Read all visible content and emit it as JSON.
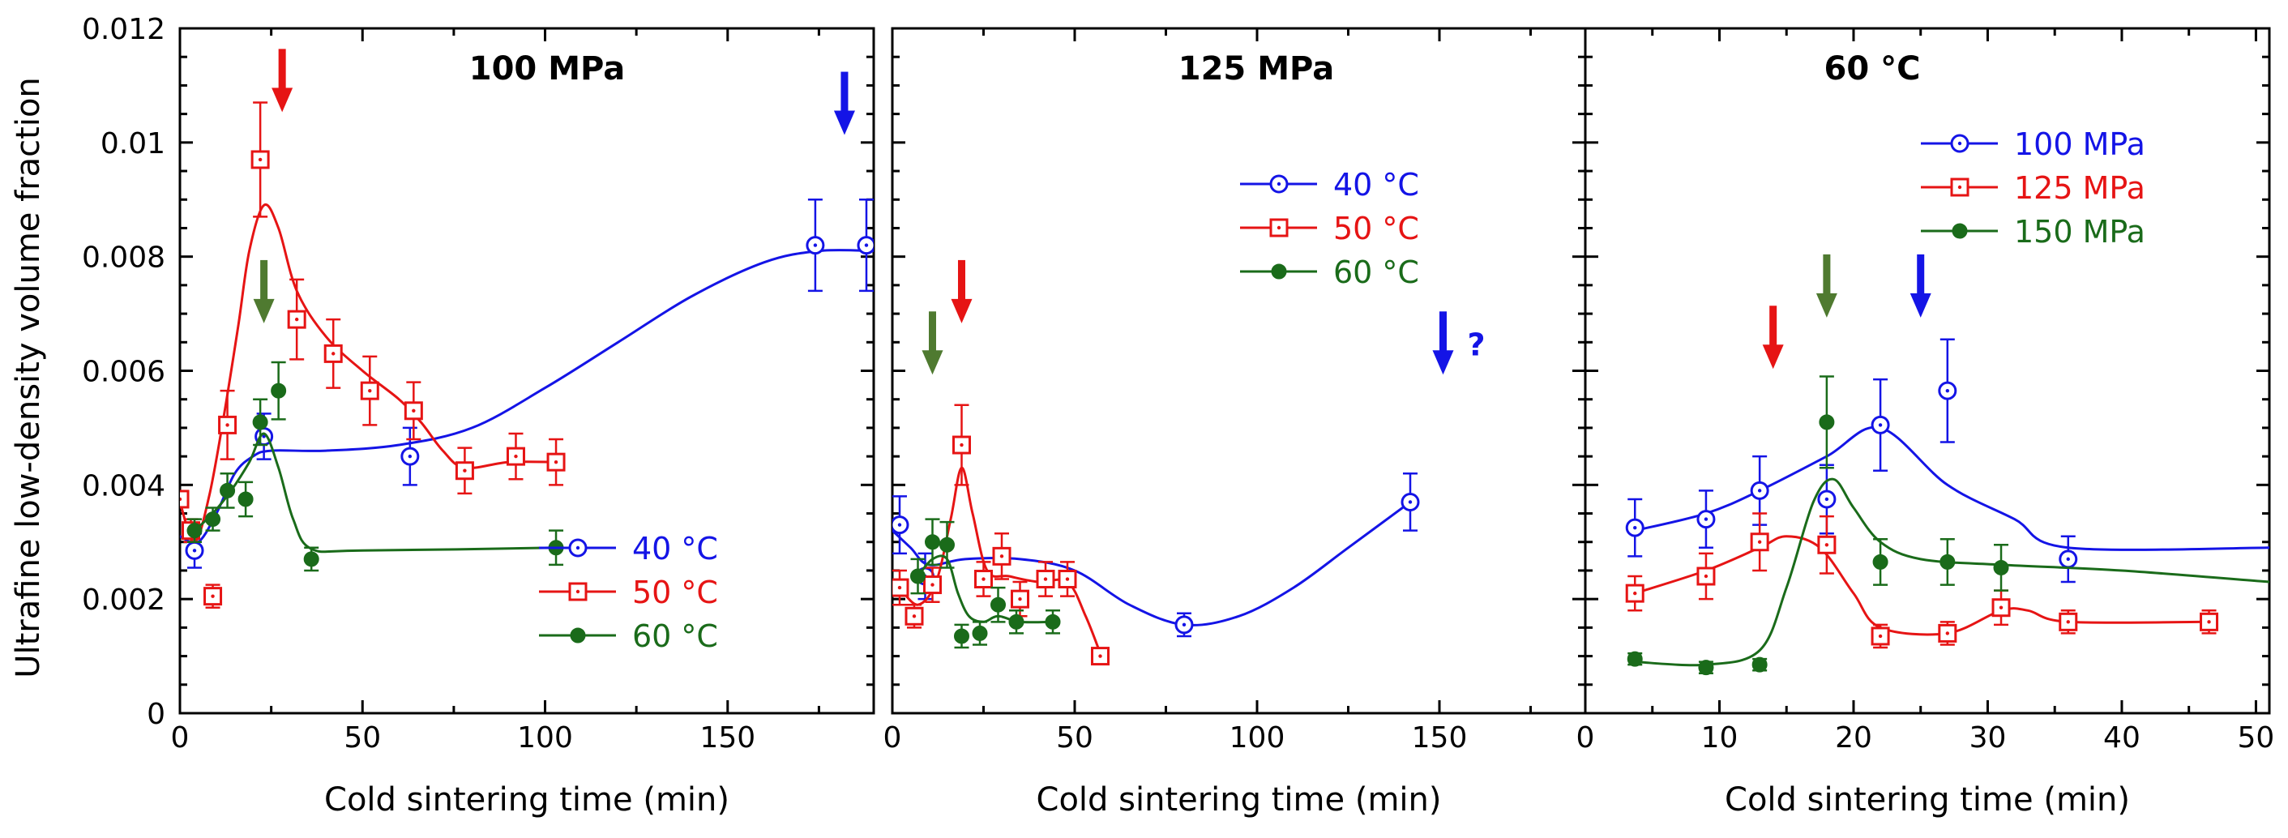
{
  "figure": {
    "ylabel": "Ultrafine low-density volume fraction",
    "y_ticks": [
      "0",
      "0.002",
      "0.004",
      "0.006",
      "0.008",
      "0.01",
      "0.012"
    ]
  },
  "colors": {
    "blue": "#1414e6",
    "red": "#e61414",
    "green": "#1a6b1a",
    "olive": "#4f7a30"
  },
  "chart_data": [
    {
      "type": "scatter",
      "title": "100 MPa",
      "xlabel": "Cold sintering time (min)",
      "ylabel": "Ultrafine low-density volume fraction",
      "xlim": [
        0,
        190
      ],
      "ylim": [
        0,
        0.012
      ],
      "x_tick_labels": [
        "0",
        "50",
        "100",
        "150"
      ],
      "legend_position": "bottom-right",
      "series": [
        {
          "name": "40 °C",
          "color": "#1414e6",
          "marker": "circle-dot",
          "points": [
            {
              "x": 4,
              "y": 0.00285,
              "err": 0.0003
            },
            {
              "x": 23,
              "y": 0.00485,
              "err": 0.0004
            },
            {
              "x": 63,
              "y": 0.0045,
              "err": 0.0005
            },
            {
              "x": 174,
              "y": 0.0082,
              "err": 0.0008
            },
            {
              "x": 188,
              "y": 0.0082,
              "err": 0.0008
            }
          ],
          "trend": [
            [
              0,
              0.0031
            ],
            [
              5,
              0.003
            ],
            [
              10,
              0.0035
            ],
            [
              15,
              0.0042
            ],
            [
              20,
              0.0045
            ],
            [
              25,
              0.0046
            ],
            [
              40,
              0.0046
            ],
            [
              60,
              0.0047
            ],
            [
              80,
              0.005
            ],
            [
              100,
              0.0057
            ],
            [
              120,
              0.0065
            ],
            [
              140,
              0.0073
            ],
            [
              160,
              0.0079
            ],
            [
              175,
              0.0081
            ],
            [
              190,
              0.0081
            ]
          ]
        },
        {
          "name": "50 °C",
          "color": "#e61414",
          "marker": "square-dot",
          "points": [
            {
              "x": 0,
              "y": 0.00375,
              "err": 0.0
            },
            {
              "x": 3,
              "y": 0.0032,
              "err": 0.0002
            },
            {
              "x": 9,
              "y": 0.00205,
              "err": 0.0002
            },
            {
              "x": 13,
              "y": 0.00505,
              "err": 0.0006
            },
            {
              "x": 22,
              "y": 0.0097,
              "err": 0.001
            },
            {
              "x": 32,
              "y": 0.0069,
              "err": 0.0007
            },
            {
              "x": 42,
              "y": 0.0063,
              "err": 0.0006
            },
            {
              "x": 52,
              "y": 0.00565,
              "err": 0.0006
            },
            {
              "x": 64,
              "y": 0.0053,
              "err": 0.0005
            },
            {
              "x": 78,
              "y": 0.00425,
              "err": 0.0004
            },
            {
              "x": 92,
              "y": 0.0045,
              "err": 0.0004
            },
            {
              "x": 103,
              "y": 0.0044,
              "err": 0.0004
            }
          ],
          "trend": [
            [
              0,
              0.0037
            ],
            [
              4,
              0.003
            ],
            [
              8,
              0.0038
            ],
            [
              12,
              0.0052
            ],
            [
              16,
              0.0068
            ],
            [
              19,
              0.0081
            ],
            [
              23,
              0.0089
            ],
            [
              27,
              0.0085
            ],
            [
              32,
              0.0074
            ],
            [
              40,
              0.0066
            ],
            [
              50,
              0.006
            ],
            [
              60,
              0.0055
            ],
            [
              66,
              0.0051
            ],
            [
              72,
              0.0046
            ],
            [
              78,
              0.0043
            ],
            [
              90,
              0.0044
            ],
            [
              103,
              0.0044
            ]
          ]
        },
        {
          "name": "60 °C",
          "color": "#1a6b1a",
          "marker": "filled-circle",
          "points": [
            {
              "x": 4,
              "y": 0.0032,
              "err": 0.0002
            },
            {
              "x": 9,
              "y": 0.0034,
              "err": 0.0002
            },
            {
              "x": 13,
              "y": 0.0039,
              "err": 0.0003
            },
            {
              "x": 18,
              "y": 0.00375,
              "err": 0.0003
            },
            {
              "x": 22,
              "y": 0.0051,
              "err": 0.0004
            },
            {
              "x": 27,
              "y": 0.00565,
              "err": 0.0005
            },
            {
              "x": 36,
              "y": 0.0027,
              "err": 0.0002
            },
            {
              "x": 103,
              "y": 0.0029,
              "err": 0.0003
            }
          ],
          "trend": [
            [
              4,
              0.0032
            ],
            [
              9,
              0.0035
            ],
            [
              14,
              0.0039
            ],
            [
              19,
              0.0044
            ],
            [
              23,
              0.0049
            ],
            [
              27,
              0.0043
            ],
            [
              31,
              0.0034
            ],
            [
              36,
              0.00288
            ],
            [
              50,
              0.00285
            ],
            [
              103,
              0.0029
            ]
          ]
        }
      ],
      "annotations": [
        {
          "x": 28,
          "y": 0.0111,
          "color": "#e61414",
          "text": ""
        },
        {
          "x": 23,
          "y": 0.0074,
          "color": "#4f7a30",
          "text": ""
        },
        {
          "x": 182,
          "y": 0.0107,
          "color": "#1414e6",
          "text": ""
        }
      ]
    },
    {
      "type": "scatter",
      "title": "125 MPa",
      "xlabel": "Cold sintering time (min)",
      "ylabel": "",
      "xlim": [
        0,
        190
      ],
      "ylim": [
        0,
        0.012
      ],
      "x_tick_labels": [
        "0",
        "50",
        "100",
        "150"
      ],
      "legend_position": "top-right",
      "series": [
        {
          "name": "40 °C",
          "color": "#1414e6",
          "marker": "circle-dot",
          "points": [
            {
              "x": 2,
              "y": 0.0033,
              "err": 0.0005
            },
            {
              "x": 9,
              "y": 0.0024,
              "err": 0.0004
            },
            {
              "x": 80,
              "y": 0.00155,
              "err": 0.0002
            },
            {
              "x": 142,
              "y": 0.0037,
              "err": 0.0005
            }
          ],
          "trend": [
            [
              0,
              0.0032
            ],
            [
              5,
              0.0029
            ],
            [
              10,
              0.0026
            ],
            [
              20,
              0.0027
            ],
            [
              35,
              0.0027
            ],
            [
              50,
              0.0025
            ],
            [
              65,
              0.0019
            ],
            [
              80,
              0.00155
            ],
            [
              95,
              0.0017
            ],
            [
              110,
              0.0022
            ],
            [
              125,
              0.0029
            ],
            [
              142,
              0.0037
            ]
          ]
        },
        {
          "name": "50 °C",
          "color": "#e61414",
          "marker": "square-dot",
          "points": [
            {
              "x": 2,
              "y": 0.0022,
              "err": 0.0003
            },
            {
              "x": 6,
              "y": 0.0017,
              "err": 0.0002
            },
            {
              "x": 11,
              "y": 0.00225,
              "err": 0.0003
            },
            {
              "x": 19,
              "y": 0.0047,
              "err": 0.0007
            },
            {
              "x": 25,
              "y": 0.00235,
              "err": 0.0003
            },
            {
              "x": 30,
              "y": 0.00275,
              "err": 0.0004
            },
            {
              "x": 35,
              "y": 0.002,
              "err": 0.0003
            },
            {
              "x": 42,
              "y": 0.00235,
              "err": 0.0003
            },
            {
              "x": 48,
              "y": 0.00235,
              "err": 0.0003
            },
            {
              "x": 57,
              "y": 0.001,
              "err": 0.0001
            }
          ],
          "trend": [
            [
              2,
              0.0022
            ],
            [
              7,
              0.0019
            ],
            [
              12,
              0.0023
            ],
            [
              16,
              0.0034
            ],
            [
              19,
              0.0043
            ],
            [
              22,
              0.0035
            ],
            [
              26,
              0.0025
            ],
            [
              32,
              0.0024
            ],
            [
              40,
              0.0023
            ],
            [
              48,
              0.0023
            ],
            [
              53,
              0.0017
            ],
            [
              57,
              0.00105
            ]
          ]
        },
        {
          "name": "60 °C",
          "color": "#1a6b1a",
          "marker": "filled-circle",
          "points": [
            {
              "x": 7,
              "y": 0.0024,
              "err": 0.0003
            },
            {
              "x": 11,
              "y": 0.003,
              "err": 0.0004
            },
            {
              "x": 15,
              "y": 0.00295,
              "err": 0.0004
            },
            {
              "x": 19,
              "y": 0.00135,
              "err": 0.0002
            },
            {
              "x": 24,
              "y": 0.0014,
              "err": 0.0002
            },
            {
              "x": 29,
              "y": 0.0019,
              "err": 0.0003
            },
            {
              "x": 34,
              "y": 0.0016,
              "err": 0.0002
            },
            {
              "x": 44,
              "y": 0.0016,
              "err": 0.0002
            }
          ],
          "trend": [
            [
              7,
              0.0024
            ],
            [
              11,
              0.0027
            ],
            [
              15,
              0.0027
            ],
            [
              18,
              0.0021
            ],
            [
              21,
              0.0017
            ],
            [
              25,
              0.0016
            ],
            [
              29,
              0.0017
            ],
            [
              35,
              0.0016
            ],
            [
              44,
              0.0016
            ]
          ]
        }
      ],
      "annotations": [
        {
          "x": 19,
          "y": 0.0074,
          "color": "#e61414",
          "text": ""
        },
        {
          "x": 11,
          "y": 0.0065,
          "color": "#4f7a30",
          "text": ""
        },
        {
          "x": 151,
          "y": 0.0065,
          "color": "#1414e6",
          "text": "?"
        }
      ]
    },
    {
      "type": "scatter",
      "title": "60 °C",
      "xlabel": "Cold sintering time (min)",
      "ylabel": "",
      "xlim": [
        0,
        51
      ],
      "ylim": [
        0,
        0.012
      ],
      "x_tick_labels": [
        "0",
        "10",
        "20",
        "30",
        "40",
        "50"
      ],
      "legend_position": "top-right",
      "series": [
        {
          "name": "100 MPa",
          "color": "#1414e6",
          "marker": "circle-dot",
          "points": [
            {
              "x": 3.7,
              "y": 0.00325,
              "err": 0.0005
            },
            {
              "x": 9,
              "y": 0.0034,
              "err": 0.0005
            },
            {
              "x": 13,
              "y": 0.0039,
              "err": 0.0006
            },
            {
              "x": 18,
              "y": 0.00375,
              "err": 0.0006
            },
            {
              "x": 22,
              "y": 0.00505,
              "err": 0.0008
            },
            {
              "x": 27,
              "y": 0.00565,
              "err": 0.0009
            },
            {
              "x": 36,
              "y": 0.0027,
              "err": 0.0004
            }
          ],
          "trend": [
            [
              3.7,
              0.0032
            ],
            [
              9,
              0.0035
            ],
            [
              13,
              0.0039
            ],
            [
              18,
              0.0045
            ],
            [
              22,
              0.005
            ],
            [
              27,
              0.004
            ],
            [
              32,
              0.0034
            ],
            [
              36,
              0.0029
            ],
            [
              51,
              0.0029
            ]
          ]
        },
        {
          "name": "125 MPa",
          "color": "#e61414",
          "marker": "square-dot",
          "points": [
            {
              "x": 3.7,
              "y": 0.0021,
              "err": 0.0003
            },
            {
              "x": 9,
              "y": 0.0024,
              "err": 0.0004
            },
            {
              "x": 13,
              "y": 0.003,
              "err": 0.0005
            },
            {
              "x": 18,
              "y": 0.00295,
              "err": 0.0005
            },
            {
              "x": 22,
              "y": 0.00135,
              "err": 0.0002
            },
            {
              "x": 27,
              "y": 0.0014,
              "err": 0.0002
            },
            {
              "x": 31,
              "y": 0.00185,
              "err": 0.0003
            },
            {
              "x": 36,
              "y": 0.0016,
              "err": 0.0002
            },
            {
              "x": 46.5,
              "y": 0.0016,
              "err": 0.0002
            }
          ],
          "trend": [
            [
              3.7,
              0.0021
            ],
            [
              9,
              0.0025
            ],
            [
              13,
              0.0029
            ],
            [
              15,
              0.0031
            ],
            [
              17.5,
              0.0029
            ],
            [
              20,
              0.0021
            ],
            [
              22,
              0.0015
            ],
            [
              27,
              0.0014
            ],
            [
              31,
              0.0018
            ],
            [
              33,
              0.0018
            ],
            [
              36,
              0.0016
            ],
            [
              46.5,
              0.0016
            ]
          ]
        },
        {
          "name": "150 MPa",
          "color": "#1a6b1a",
          "marker": "filled-circle",
          "points": [
            {
              "x": 3.7,
              "y": 0.00095,
              "err": 0.0001
            },
            {
              "x": 9,
              "y": 0.0008,
              "err": 0.0001
            },
            {
              "x": 13,
              "y": 0.00085,
              "err": 0.0001
            },
            {
              "x": 18,
              "y": 0.0051,
              "err": 0.0008
            },
            {
              "x": 22,
              "y": 0.00265,
              "err": 0.0004
            },
            {
              "x": 27,
              "y": 0.00265,
              "err": 0.0004
            },
            {
              "x": 31,
              "y": 0.00255,
              "err": 0.0004
            }
          ],
          "trend": [
            [
              3.7,
              0.0009
            ],
            [
              9,
              0.00085
            ],
            [
              13,
              0.0011
            ],
            [
              15,
              0.0022
            ],
            [
              17,
              0.0037
            ],
            [
              18.5,
              0.0041
            ],
            [
              20,
              0.0036
            ],
            [
              22,
              0.003
            ],
            [
              25,
              0.0027
            ],
            [
              31,
              0.0026
            ],
            [
              40,
              0.0025
            ],
            [
              51,
              0.0023
            ]
          ]
        }
      ],
      "annotations": [
        {
          "x": 14,
          "y": 0.0066,
          "color": "#e61414",
          "text": ""
        },
        {
          "x": 18,
          "y": 0.0075,
          "color": "#4f7a30",
          "text": ""
        },
        {
          "x": 25,
          "y": 0.0075,
          "color": "#1414e6",
          "text": ""
        }
      ]
    }
  ]
}
